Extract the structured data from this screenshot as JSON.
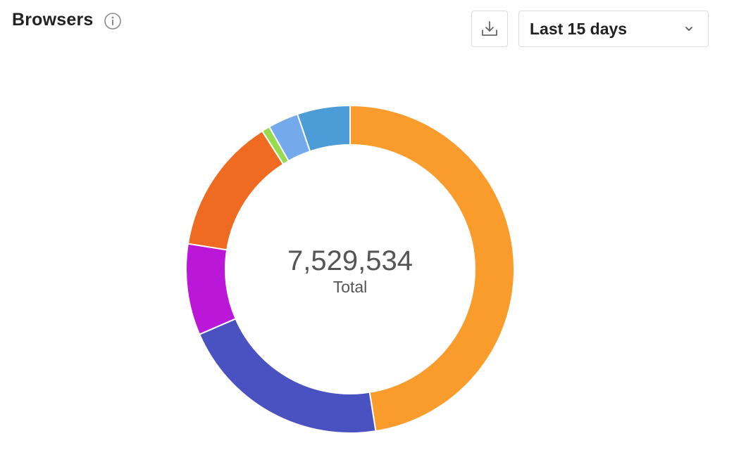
{
  "header": {
    "title": "Browsers",
    "info_icon": "info-icon",
    "download_icon": "download-icon",
    "range_label": "Last 15 days",
    "range_icon": "chevron-down-icon"
  },
  "chart_data": {
    "type": "pie",
    "variant": "donut",
    "title": "Browsers",
    "center_value": "7,529,534",
    "center_label": "Total",
    "total": 7529534,
    "slices": [
      {
        "value": 3576528,
        "color": "#f99c2c"
      },
      {
        "value": 1581202,
        "color": "#4a51c1"
      },
      {
        "value": 677658,
        "color": "#bb17d8"
      },
      {
        "value": 1016487,
        "color": "#f06b22"
      },
      {
        "value": 60236,
        "color": "#99db4e"
      },
      {
        "value": 225886,
        "color": "#74a9ec"
      },
      {
        "value": 391537,
        "color": "#4c9cd8"
      }
    ]
  }
}
